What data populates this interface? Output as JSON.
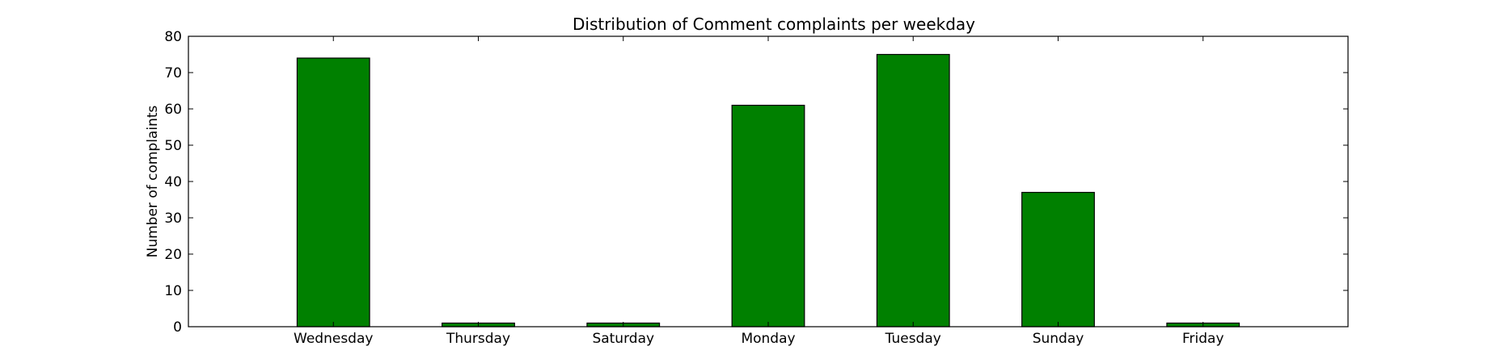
{
  "chart_data": {
    "type": "bar",
    "title": "Distribution of  Comment complaints per weekday",
    "xlabel": "",
    "ylabel": "Number of complaints",
    "categories": [
      "Wednesday",
      "Thursday",
      "Saturday",
      "Monday",
      "Tuesday",
      "Sunday",
      "Friday"
    ],
    "values": [
      74,
      1,
      1,
      61,
      75,
      37,
      1
    ],
    "ylim": [
      0,
      80
    ],
    "yticks": [
      0,
      10,
      20,
      30,
      40,
      50,
      60,
      70,
      80
    ],
    "bar_color": "#008000",
    "grid": false,
    "legend": "none"
  }
}
